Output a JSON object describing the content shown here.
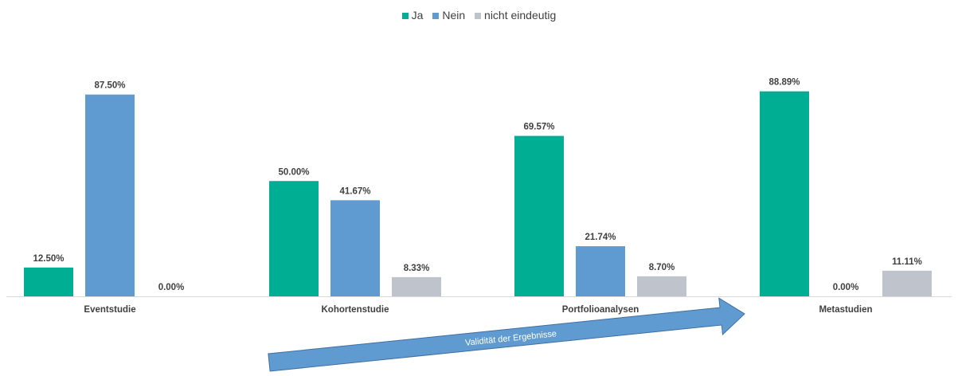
{
  "chart_data": {
    "type": "bar",
    "categories": [
      "Eventstudie",
      "Kohortenstudie",
      "Portfolioanalysen",
      "Metastudien"
    ],
    "series": [
      {
        "name": "Ja",
        "color": "#00AE94",
        "values": [
          12.5,
          50.0,
          69.57,
          88.89
        ],
        "labels": [
          "12.50%",
          "50.00%",
          "69.57%",
          "88.89%"
        ]
      },
      {
        "name": "Nein",
        "color": "#5F9BD1",
        "values": [
          87.5,
          41.67,
          21.74,
          0.0
        ],
        "labels": [
          "87.50%",
          "41.67%",
          "21.74%",
          "0.00%"
        ]
      },
      {
        "name": "nicht eindeutig",
        "color": "#BEC3CC",
        "values": [
          0.0,
          8.33,
          8.7,
          11.11
        ],
        "labels": [
          "0.00%",
          "8.33%",
          "8.70%",
          "11.11%"
        ]
      }
    ],
    "ylim": [
      0,
      100
    ],
    "grid": false,
    "legend_position": "top",
    "annotation": {
      "text": "Validität der Ergebnisse",
      "color": "#5F9BD1"
    }
  }
}
